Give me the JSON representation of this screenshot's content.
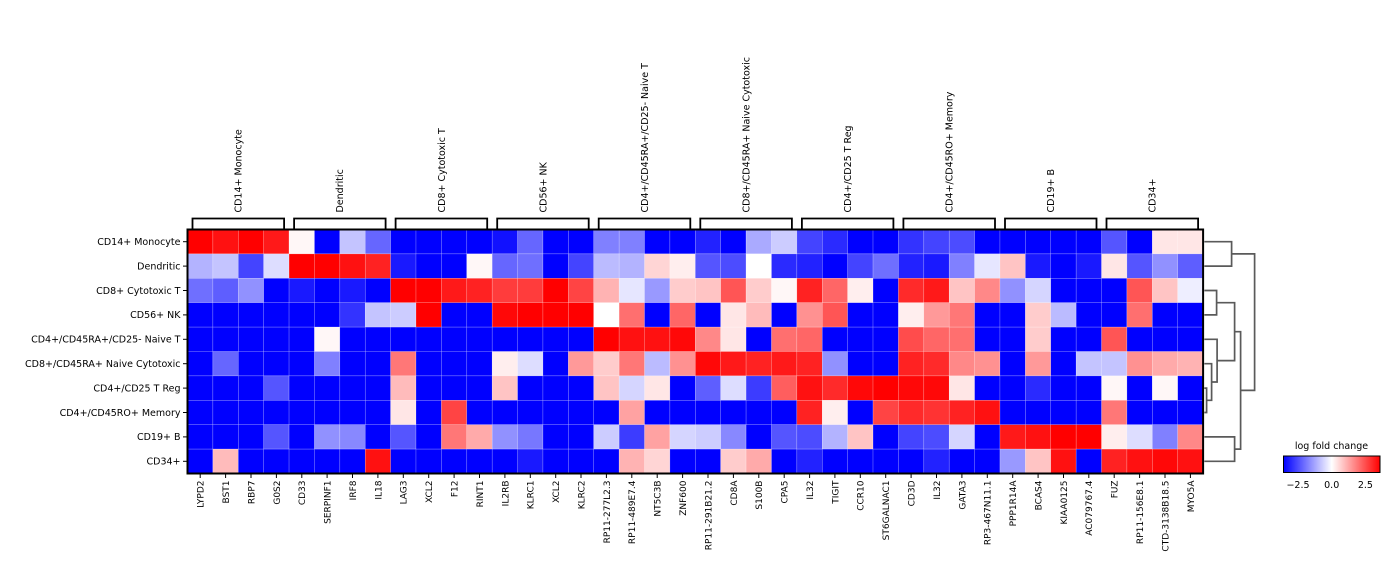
{
  "chart_data": {
    "type": "heatmap",
    "title": "",
    "value_label": "log fold change",
    "rows": [
      "CD14+ Monocyte",
      "Dendritic",
      "CD8+ Cytotoxic T",
      "CD56+ NK",
      "CD4+/CD45RA+/CD25- Naive T",
      "CD8+/CD45RA+ Naive Cytotoxic",
      "CD4+/CD25 T Reg",
      "CD4+/CD45RO+ Memory",
      "CD19+ B",
      "CD34+"
    ],
    "columns": [
      "LYPD2",
      "BST1",
      "RBP7",
      "G0S2",
      "CD33",
      "SERPINF1",
      "IRF8",
      "IL18",
      "LAG3",
      "XCL2",
      "F12",
      "RINT1",
      "IL2RB",
      "KLRC1",
      "XCL2",
      "KLRC2",
      "RP11-277L2.3",
      "RP11-489E7.4",
      "NT5C3B",
      "ZNF600",
      "RP11-291B21.2",
      "CD8A",
      "S100B",
      "CPA5",
      "IL32",
      "TIGIT",
      "CCR10",
      "ST6GALNAC1",
      "CD3D",
      "IL32",
      "GATA3",
      "RP3-467N11.1",
      "PPP1R14A",
      "BCAS4",
      "KIAA0125",
      "AC079767.4",
      "FUZ",
      "RP11-156E8.1",
      "CTD-3138B18.5",
      "MYO5A"
    ],
    "column_groups": [
      {
        "label": "CD14+ Monocyte",
        "columns": [
          "LYPD2",
          "BST1",
          "RBP7",
          "G0S2"
        ]
      },
      {
        "label": "Dendritic",
        "columns": [
          "CD33",
          "SERPINF1",
          "IRF8",
          "IL18"
        ]
      },
      {
        "label": "CD8+ Cytotoxic T",
        "columns": [
          "LAG3",
          "XCL2",
          "F12",
          "RINT1"
        ]
      },
      {
        "label": "CD56+ NK",
        "columns": [
          "IL2RB",
          "KLRC1",
          "XCL2",
          "KLRC2"
        ]
      },
      {
        "label": "CD4+/CD45RA+/CD25- Naive T",
        "columns": [
          "RP11-277L2.3",
          "RP11-489E7.4",
          "NT5C3B",
          "ZNF600"
        ]
      },
      {
        "label": "CD8+/CD45RA+ Naive Cytotoxic",
        "columns": [
          "RP11-291B21.2",
          "CD8A",
          "S100B",
          "CPA5"
        ]
      },
      {
        "label": "CD4+/CD25 T Reg",
        "columns": [
          "IL32",
          "TIGIT",
          "CCR10",
          "ST6GALNAC1"
        ]
      },
      {
        "label": "CD4+/CD45RO+ Memory",
        "columns": [
          "CD3D",
          "IL32",
          "GATA3",
          "RP3-467N11.1"
        ]
      },
      {
        "label": "CD19+ B",
        "columns": [
          "PPP1R14A",
          "BCAS4",
          "KIAA0125",
          "AC079767.4"
        ]
      },
      {
        "label": "CD34+",
        "columns": [
          "FUZ",
          "RP11-156E8.1",
          "CTD-3138B18.5",
          "MYO5A"
        ]
      }
    ],
    "values": [
      [
        3,
        2.8,
        3,
        2.7,
        0.1,
        -3,
        -0.7,
        -1.8,
        -3,
        -3,
        -3,
        -3,
        -2.8,
        -1.8,
        -3,
        -3,
        -1.5,
        -1.5,
        -3,
        -3,
        -2.6,
        -3,
        -1,
        -0.6,
        -2.2,
        -2.5,
        -3,
        -3,
        -2.4,
        -2.2,
        -2.1,
        -3,
        -3,
        -3,
        -3,
        -3,
        -2,
        -3,
        0.3,
        0.3
      ],
      [
        -0.9,
        -0.7,
        -2.2,
        -0.4,
        3,
        3,
        2.8,
        2.6,
        -2.7,
        -3,
        -3,
        0.1,
        -1.8,
        -1.7,
        -3,
        -2.2,
        -0.8,
        -0.9,
        0.5,
        0.2,
        -2,
        -2.1,
        0,
        -2.5,
        -2.6,
        -3,
        -2.2,
        -1.7,
        -2.6,
        -2.7,
        -1.5,
        -0.3,
        0.7,
        -2.7,
        -3,
        -2.7,
        0.3,
        -2,
        -1.3,
        -1.9
      ],
      [
        -1.7,
        -1.9,
        -1.3,
        -3,
        -2.7,
        -3,
        -2.7,
        -3,
        3,
        3,
        2.7,
        2.6,
        2.3,
        2.3,
        3,
        2.2,
        0.9,
        -0.3,
        -1.2,
        0.6,
        0.7,
        2,
        0.6,
        0.1,
        2.6,
        1.8,
        0.2,
        -3,
        2.5,
        2.7,
        0.7,
        1.4,
        -1.3,
        -0.5,
        -3,
        -3,
        -3,
        2,
        0.7,
        -0.2
      ],
      [
        -3,
        -3,
        -3,
        -3,
        -3,
        -3,
        -2.4,
        -0.7,
        -0.6,
        3,
        -3,
        -3,
        2.9,
        3,
        3,
        3,
        0,
        1.7,
        -3,
        1.8,
        -3,
        0.3,
        0.8,
        -3,
        1.3,
        2,
        -3,
        -3,
        0.2,
        1.2,
        1.6,
        -3,
        -3,
        0.6,
        -0.8,
        -3,
        -3,
        1.7,
        -3,
        -3
      ],
      [
        -3,
        -3,
        -3,
        -3,
        -3,
        0.1,
        -3,
        -3,
        -3,
        -3,
        -3,
        -3,
        -3,
        -3,
        -3,
        -3,
        3,
        2.8,
        2.8,
        2.9,
        1.4,
        0.3,
        -3,
        1.7,
        1.8,
        -3,
        -3,
        -3,
        2.1,
        1.8,
        1.7,
        -3,
        -3,
        0.6,
        -3,
        -3,
        2,
        -3,
        -3,
        -3
      ],
      [
        -3,
        -1.8,
        -3,
        -3,
        -3,
        -1.5,
        -3,
        -3,
        1.6,
        -3,
        -3,
        -3,
        0.2,
        -0.4,
        -3,
        1.2,
        0.6,
        1.6,
        -0.8,
        1.3,
        2.9,
        2.7,
        2.6,
        2.7,
        2.6,
        -1.3,
        -3,
        -3,
        2.6,
        2.5,
        1.4,
        1.3,
        -3,
        1.2,
        -3,
        -0.7,
        -0.7,
        1.3,
        1,
        0.9
      ],
      [
        -3,
        -3,
        -3,
        -2,
        -3,
        -3,
        -3,
        -3,
        0.8,
        -3,
        -3,
        -3,
        0.7,
        -3,
        -3,
        -3,
        0.7,
        -0.5,
        0.3,
        -3,
        -1.9,
        -0.4,
        -2.3,
        1.9,
        2.8,
        2.5,
        2.9,
        3,
        2.9,
        2.9,
        0.3,
        -3,
        -3,
        -2.5,
        -3,
        -3,
        0.1,
        -3,
        0.1,
        -3
      ],
      [
        -3,
        -3,
        -3,
        -3,
        -3,
        -3,
        -3,
        -3,
        0.3,
        -3,
        2.2,
        -3,
        -3,
        -3,
        -3,
        -3,
        -3,
        1.1,
        -3,
        -3,
        -3,
        -3,
        -3,
        -3,
        2.6,
        0.2,
        -3,
        2.2,
        2.5,
        2.4,
        2.6,
        2.8,
        -3,
        -3,
        -3,
        -3,
        1.6,
        -3,
        -3,
        -3
      ],
      [
        -3,
        -3,
        -3,
        -2,
        -3,
        -1.3,
        -1.4,
        -3,
        -2,
        -3,
        1.6,
        1,
        -1.3,
        -1.6,
        -3,
        -3,
        -0.6,
        -2.3,
        1.1,
        -0.5,
        -0.6,
        -1.4,
        -3,
        -2,
        -2.1,
        -0.9,
        0.7,
        -3,
        -2.2,
        -2.1,
        -0.5,
        -3,
        2.7,
        2.8,
        3,
        3,
        0.2,
        -0.4,
        -1.5,
        1.4
      ],
      [
        -3,
        0.8,
        -3,
        -3,
        -3,
        -3,
        -3,
        2.8,
        -3,
        -3,
        -3,
        -3,
        -3,
        -2.7,
        -3,
        -3,
        -3,
        0.9,
        0.5,
        -3,
        -3,
        0.6,
        1,
        -3,
        -2.6,
        -3,
        -3,
        -3,
        -3,
        -2.6,
        -3,
        -3,
        -1.2,
        0.7,
        2.8,
        -3,
        2.6,
        2.8,
        2.9,
        2.8
      ]
    ],
    "colorbar": {
      "title": "log fold change",
      "tick_labels": [
        "−2.5",
        "0.0",
        "2.5"
      ],
      "tick_values": [
        -2.5,
        0.0,
        2.5
      ],
      "vmin": -3.6,
      "vmax": 3.6,
      "colors": {
        "low": "#0000ff",
        "mid": "#ffffff",
        "high": "#ff0000"
      }
    },
    "row_dendrogram": {
      "color": "#5a5a5a",
      "merges": [
        {
          "id": "A",
          "a": "CD14+ Monocyte",
          "b": "Dendritic",
          "dist": 28.5
        },
        {
          "id": "B",
          "a": "CD8+ Cytotoxic T",
          "b": "CD56+ NK",
          "dist": 13.5
        },
        {
          "id": "C",
          "a": "CD4+/CD25 T Reg",
          "b": "CD4+/CD45RO+ Memory",
          "dist": 3.5
        },
        {
          "id": "D",
          "a": "CD8+/CD45RA+ Naive Cytotoxic",
          "b": "C",
          "dist": 8.5
        },
        {
          "id": "D2",
          "a": "CD4+/CD45RA+/CD25- Naive T",
          "b": "D",
          "dist": 14
        },
        {
          "id": "E",
          "a": "B",
          "b": "D2",
          "dist": 31.5
        },
        {
          "id": "F",
          "a": "CD19+ B",
          "b": "CD34+",
          "dist": 31.5
        },
        {
          "id": "G",
          "a": "E",
          "b": "F",
          "dist": 37.5
        },
        {
          "id": "ROOT",
          "a": "A",
          "b": "G",
          "dist": 51.5
        }
      ]
    },
    "legend_position": "bottom-right",
    "grid": false
  }
}
